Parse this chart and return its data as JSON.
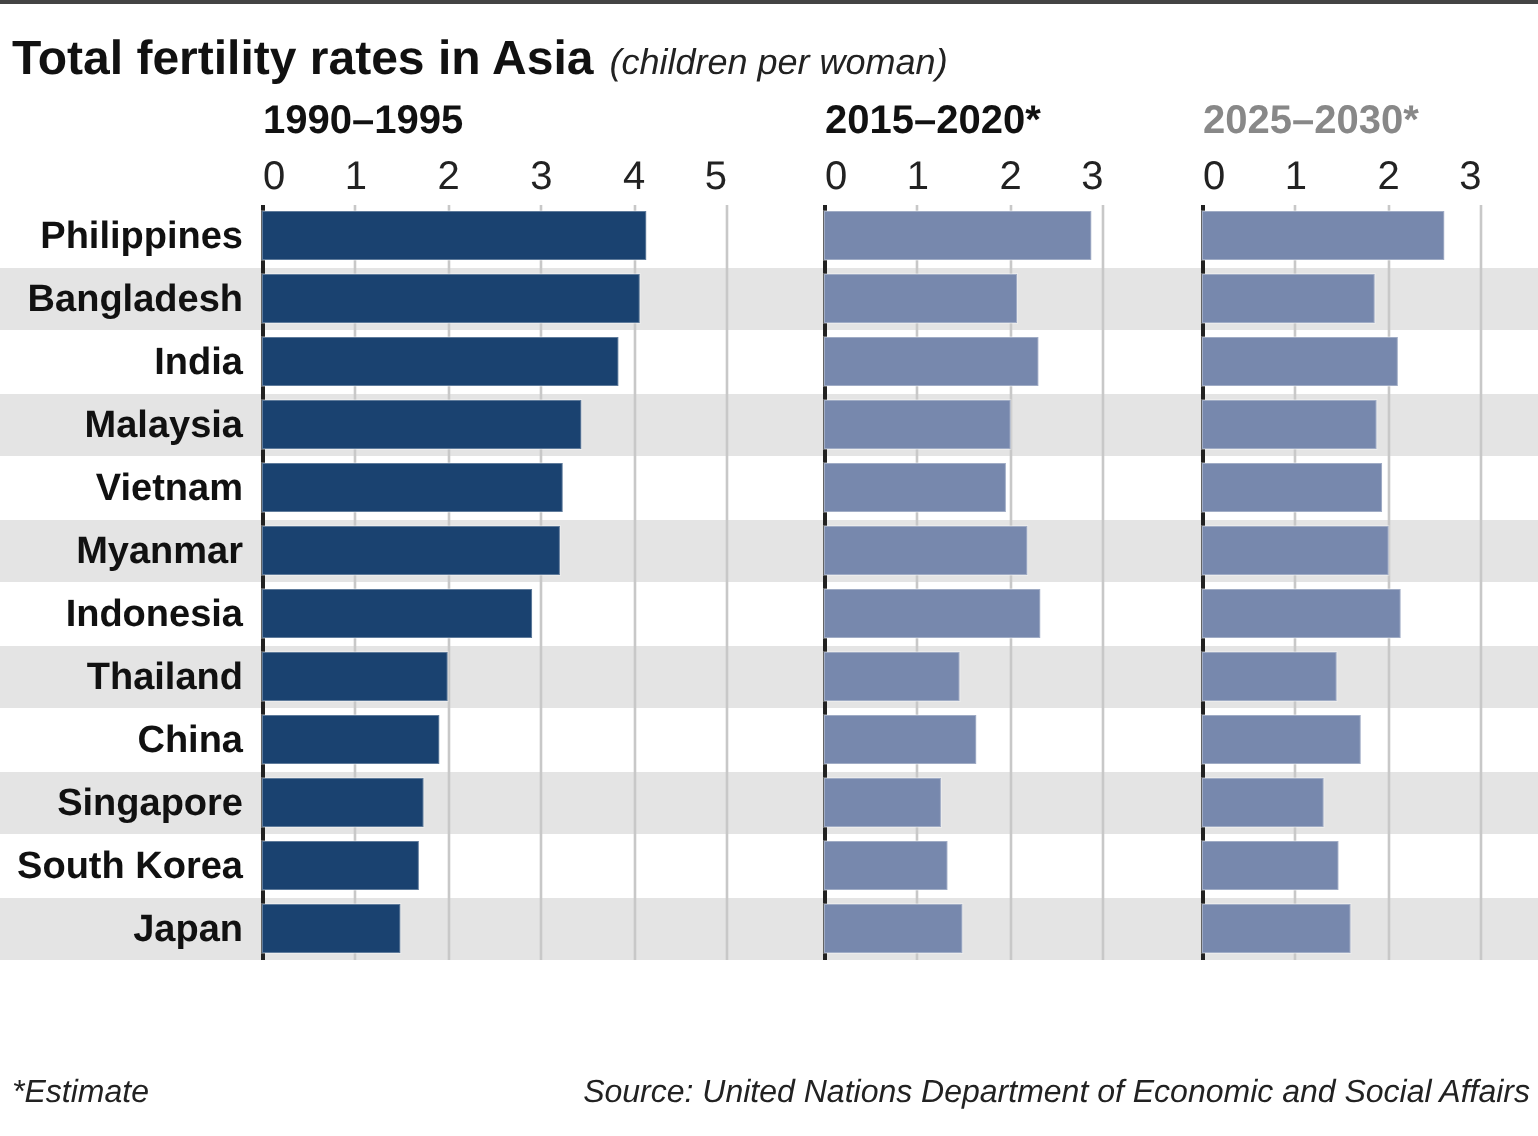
{
  "chart_data": [
    {
      "type": "bar",
      "orientation": "horizontal",
      "title": "Total fertility rates in Asia",
      "subtitle": "(children per woman)",
      "xlabel": "1990–1995",
      "categories": [
        "Philippines",
        "Bangladesh",
        "India",
        "Malaysia",
        "Vietnam",
        "Myanmar",
        "Indonesia",
        "Thailand",
        "China",
        "Singapore",
        "South Korea",
        "Japan"
      ],
      "values": [
        4.14,
        4.07,
        3.84,
        3.44,
        3.24,
        3.21,
        2.91,
        2.0,
        1.91,
        1.74,
        1.69,
        1.49
      ],
      "color": "#1a4270",
      "xlim": [
        0,
        5
      ],
      "xticks": [
        0,
        1,
        2,
        3,
        4,
        5
      ],
      "grid": "x",
      "annotations": [
        "*Estimate",
        "Source: United Nations Department of Economic and Social Affairs"
      ]
    },
    {
      "type": "bar",
      "orientation": "horizontal",
      "xlabel": "2015–2020*",
      "categories": [
        "Philippines",
        "Bangladesh",
        "India",
        "Malaysia",
        "Vietnam",
        "Myanmar",
        "Indonesia",
        "Thailand",
        "China",
        "Singapore",
        "South Korea",
        "Japan"
      ],
      "values": [
        2.88,
        2.08,
        2.31,
        2.01,
        1.96,
        2.19,
        2.33,
        1.46,
        1.64,
        1.26,
        1.33,
        1.49
      ],
      "color": "#7788ad",
      "xlim": [
        0,
        3
      ],
      "xticks": [
        0,
        1,
        2,
        3
      ],
      "grid": "x",
      "tick_labels": "x"
    },
    {
      "type": "bar",
      "orientation": "horizontal",
      "xlabel": "2025–2030*",
      "categories": [
        "Philippines",
        "Bangladesh",
        "India",
        "Malaysia",
        "Vietnam",
        "Myanmar",
        "Indonesia",
        "Thailand",
        "China",
        "Singapore",
        "South Korea",
        "Japan"
      ],
      "values": [
        2.61,
        1.86,
        2.11,
        1.88,
        1.94,
        2.01,
        2.14,
        1.45,
        1.71,
        1.31,
        1.47,
        1.6
      ],
      "color": "#7788ad",
      "xlim": [
        0,
        3
      ],
      "xticks": [
        0,
        1,
        2,
        3
      ],
      "grid": "x",
      "tick_labels": "x"
    }
  ]
}
